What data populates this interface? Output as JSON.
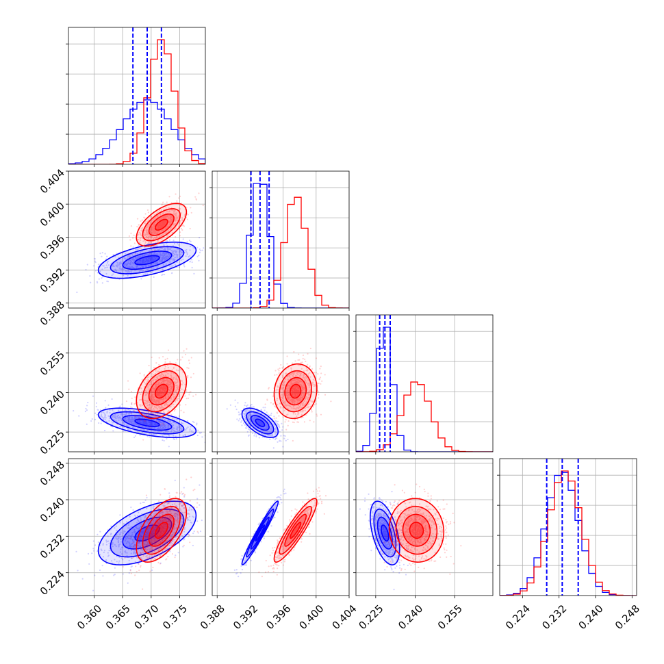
{
  "chart_data": {
    "type": "corner",
    "title": "",
    "dimensions": 4,
    "parameter_labels": [
      "",
      "",
      "",
      ""
    ],
    "series": [
      {
        "color": "#0000ff",
        "mean": [
          0.3693,
          0.3932,
          0.2285,
          0.2327
        ],
        "sd": [
          0.0043,
          0.0011,
          0.0028,
          0.0035
        ],
        "corr": {
          "0-1": 0.55,
          "0-2": -0.55,
          "0-3": 0.55,
          "1-2": -0.6,
          "1-3": 0.97,
          "2-3": -0.5
        },
        "quantiles": [
          [
            0.3668,
            0.3693,
            0.3718
          ],
          [
            0.3921,
            0.3932,
            0.3943
          ],
          [
            0.2265,
            0.2285,
            0.2305
          ],
          [
            0.2293,
            0.2327,
            0.2362
          ]
        ]
      },
      {
        "color": "#ff0000",
        "mean": [
          0.3718,
          0.3975,
          0.2405,
          0.2333
        ],
        "sd": [
          0.0022,
          0.0013,
          0.0052,
          0.0035
        ],
        "corr": {
          "0-1": 0.6,
          "0-2": 0.35,
          "0-3": 0.55,
          "1-2": 0.1,
          "1-3": 0.9,
          "2-3": -0.05
        }
      }
    ],
    "axis_ranges": [
      [
        0.3555,
        0.3795
      ],
      [
        0.3874,
        0.404
      ],
      [
        0.2175,
        0.2695
      ],
      [
        0.219,
        0.249
      ]
    ],
    "ticks": [
      [
        "0.360",
        "0.365",
        "0.370",
        "0.375"
      ],
      [
        "0.388",
        "0.392",
        "0.396",
        "0.400",
        "0.404"
      ],
      [
        "0.225",
        "0.240",
        "0.255"
      ],
      [
        "0.224",
        "0.232",
        "0.240",
        "0.248"
      ]
    ],
    "histogram_y_ticks": 4,
    "quantile_lines": "dashed blue at 16th, 50th, 84th percentiles (blue series)",
    "contour_levels": [
      0.5,
      1.0,
      1.5,
      2.0
    ],
    "grid": true,
    "legend": "none"
  }
}
